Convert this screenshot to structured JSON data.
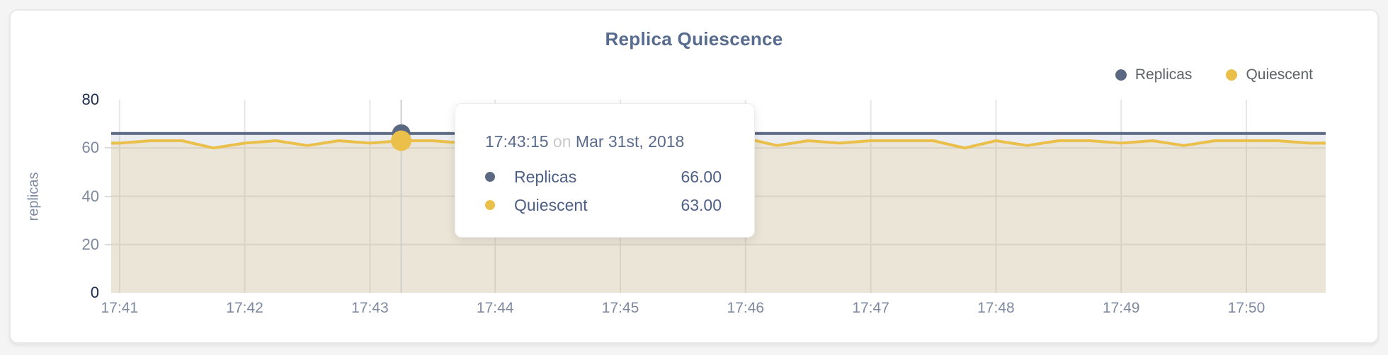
{
  "panel": {
    "title": "Replica Quiescence",
    "y_axis_title": "replicas"
  },
  "legend": [
    {
      "label": "Replicas",
      "color": "#5b6882"
    },
    {
      "label": "Quiescent",
      "color": "#eabf4a"
    }
  ],
  "tooltip": {
    "time": "17:43:15",
    "connector": "on",
    "date": "Mar 31st, 2018",
    "rows": [
      {
        "label": "Replicas",
        "value": "66.00",
        "color": "#5b6882"
      },
      {
        "label": "Quiescent",
        "value": "63.00",
        "color": "#eabf4a"
      }
    ]
  },
  "colors": {
    "replicas_line": "#5b6882",
    "quiescent_line": "#eabf4a",
    "replicas_fill": "rgba(91,104,130,0.12)",
    "quiescent_fill": "rgba(234,191,74,0.15)",
    "grid": "#e7e7e7",
    "crosshair": "#cfcfcf",
    "tick_dark": "#1d2b50",
    "tick_gray": "#7e89a0"
  },
  "chart_data": {
    "type": "line",
    "title": "Replica Quiescence",
    "xlabel": "",
    "ylabel": "replicas",
    "ylim": [
      0,
      80
    ],
    "yticks": [
      0,
      20,
      40,
      60,
      80
    ],
    "x_tick_labels": [
      "17:41",
      "17:42",
      "17:43",
      "17:44",
      "17:45",
      "17:46",
      "17:47",
      "17:48",
      "17:49",
      "17:50"
    ],
    "x_domain": [
      "17:40:56",
      "17:50:38"
    ],
    "grid": true,
    "legend_position": "top-right",
    "times": [
      "17:41:00",
      "17:41:15",
      "17:41:30",
      "17:41:45",
      "17:42:00",
      "17:42:15",
      "17:42:30",
      "17:42:45",
      "17:43:00",
      "17:43:15",
      "17:43:30",
      "17:43:45",
      "17:44:00",
      "17:44:15",
      "17:44:30",
      "17:44:45",
      "17:45:00",
      "17:45:15",
      "17:45:30",
      "17:45:45",
      "17:46:00",
      "17:46:15",
      "17:46:30",
      "17:46:45",
      "17:47:00",
      "17:47:15",
      "17:47:30",
      "17:47:45",
      "17:48:00",
      "17:48:15",
      "17:48:30",
      "17:48:45",
      "17:49:00",
      "17:49:15",
      "17:49:30",
      "17:49:45",
      "17:50:00",
      "17:50:15",
      "17:50:30"
    ],
    "series": [
      {
        "name": "Replicas",
        "color": "#5b6882",
        "values": [
          66,
          66,
          66,
          66,
          66,
          66,
          66,
          66,
          66,
          66,
          66,
          66,
          66,
          66,
          66,
          66,
          66,
          66,
          66,
          66,
          66,
          66,
          66,
          66,
          66,
          66,
          66,
          66,
          66,
          66,
          66,
          66,
          66,
          66,
          66,
          66,
          66,
          66,
          66
        ]
      },
      {
        "name": "Quiescent",
        "color": "#eabf4a",
        "values": [
          62,
          63,
          63,
          60,
          62,
          63,
          61,
          63,
          62,
          63,
          63,
          62,
          63,
          63,
          62,
          63,
          63,
          63,
          62,
          63,
          64,
          61,
          63,
          62,
          63,
          63,
          63,
          60,
          63,
          61,
          63,
          63,
          62,
          63,
          61,
          63,
          63,
          63,
          62
        ]
      }
    ],
    "hover": {
      "time": "17:43:15",
      "date": "Mar 31st, 2018",
      "values": {
        "Replicas": 66,
        "Quiescent": 63
      }
    }
  }
}
